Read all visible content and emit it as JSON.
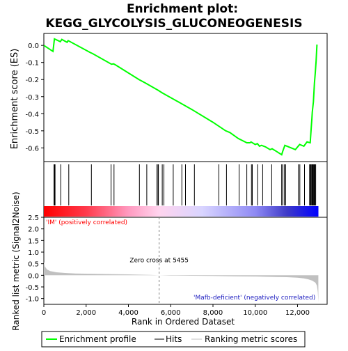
{
  "chart_data": {
    "type": "line",
    "title_line1": "Enrichment plot:",
    "title_line2": "KEGG_GLYCOLYSIS_GLUCONEOGENESIS",
    "es_panel": {
      "ylabel": "Enrichment score (ES)",
      "ylim": [
        -0.68,
        0.07
      ],
      "yticks": [
        0.0,
        -0.1,
        -0.2,
        -0.3,
        -0.4,
        -0.5,
        -0.6
      ],
      "ytick_labels": [
        "0.0",
        "-0.1",
        "-0.2",
        "-0.3",
        "-0.4",
        "-0.5",
        "-0.6"
      ],
      "curve_color": "#00ff00",
      "curve": [
        [
          0,
          0.0
        ],
        [
          430,
          -0.035
        ],
        [
          500,
          0.038
        ],
        [
          780,
          0.022
        ],
        [
          850,
          0.035
        ],
        [
          1100,
          0.018
        ],
        [
          1150,
          0.028
        ],
        [
          2200,
          -0.042
        ],
        [
          2300,
          -0.048
        ],
        [
          3200,
          -0.11
        ],
        [
          3300,
          -0.108
        ],
        [
          3400,
          -0.115
        ],
        [
          4500,
          -0.2
        ],
        [
          4800,
          -0.22
        ],
        [
          5400,
          -0.262
        ],
        [
          5600,
          -0.278
        ],
        [
          6500,
          -0.34
        ],
        [
          7000,
          -0.375
        ],
        [
          8000,
          -0.45
        ],
        [
          8600,
          -0.5
        ],
        [
          8800,
          -0.51
        ],
        [
          9200,
          -0.545
        ],
        [
          9600,
          -0.57
        ],
        [
          9750,
          -0.57
        ],
        [
          9800,
          -0.565
        ],
        [
          10000,
          -0.58
        ],
        [
          10100,
          -0.575
        ],
        [
          10200,
          -0.59
        ],
        [
          10300,
          -0.585
        ],
        [
          10500,
          -0.595
        ],
        [
          10700,
          -0.61
        ],
        [
          10800,
          -0.605
        ],
        [
          11000,
          -0.62
        ],
        [
          11250,
          -0.64
        ],
        [
          11300,
          -0.62
        ],
        [
          11400,
          -0.585
        ],
        [
          11500,
          -0.59
        ],
        [
          11900,
          -0.61
        ],
        [
          12100,
          -0.58
        ],
        [
          12300,
          -0.59
        ],
        [
          12450,
          -0.565
        ],
        [
          12600,
          -0.57
        ],
        [
          12650,
          -0.48
        ],
        [
          12680,
          -0.43
        ],
        [
          12700,
          -0.39
        ],
        [
          12750,
          -0.33
        ],
        [
          12800,
          -0.22
        ],
        [
          12840,
          -0.16
        ],
        [
          12880,
          -0.09
        ],
        [
          12920,
          0.005
        ]
      ]
    },
    "hits_panel": {
      "hit_positions": [
        480,
        510,
        530,
        800,
        1180,
        2250,
        3180,
        3320,
        4520,
        4870,
        5350,
        5400,
        5420,
        5600,
        5680,
        6120,
        6530,
        6700,
        7120,
        8280,
        8640,
        9240,
        9600,
        9820,
        9860,
        10110,
        10350,
        10780,
        11250,
        11310,
        11380,
        11440,
        12040,
        12110,
        12330,
        12570,
        12610,
        12640,
        12680,
        12700,
        12730,
        12760,
        12790,
        12820,
        12860
      ]
    },
    "ranking_panel": {
      "ylabel": "Ranked list metric (Signal2Noise)",
      "ylim": [
        -1.25,
        2.5
      ],
      "yticks": [
        2.5,
        2.0,
        1.5,
        1.0,
        0.5,
        0.0,
        -0.5,
        -1.0
      ],
      "ytick_labels": [
        "2.5",
        "2.0",
        "1.5",
        "1.0",
        "0.5",
        "0.0",
        "-0.5",
        "-1.0"
      ],
      "fill_color": "#c0c0c0",
      "metric": [
        [
          0,
          0.58
        ],
        [
          50,
          0.38
        ],
        [
          150,
          0.25
        ],
        [
          300,
          0.18
        ],
        [
          600,
          0.13
        ],
        [
          1000,
          0.1
        ],
        [
          1500,
          0.08
        ],
        [
          2000,
          0.07
        ],
        [
          3000,
          0.055
        ],
        [
          4000,
          0.04
        ],
        [
          5000,
          0.02
        ],
        [
          5455,
          0.0
        ],
        [
          6000,
          -0.01
        ],
        [
          7000,
          -0.02
        ],
        [
          8000,
          -0.03
        ],
        [
          9000,
          -0.04
        ],
        [
          10000,
          -0.05
        ],
        [
          11000,
          -0.07
        ],
        [
          11500,
          -0.08
        ],
        [
          12000,
          -0.1
        ],
        [
          12300,
          -0.13
        ],
        [
          12500,
          -0.17
        ],
        [
          12700,
          -0.23
        ],
        [
          12850,
          -0.32
        ],
        [
          12920,
          -0.45
        ],
        [
          12960,
          -0.7
        ],
        [
          12985,
          -1.15
        ]
      ],
      "label_pos": "'IM' (positively correlated)",
      "label_neg": "'Mafb-deficient' (negatively correlated)",
      "zero_cross_label": "Zero cross at 5455",
      "zero_cross": 5455
    },
    "xaxis": {
      "xlabel": "Rank in Ordered Dataset",
      "xlim": [
        0,
        13400
      ],
      "xticks": [
        0,
        2000,
        4000,
        6000,
        8000,
        10000,
        12000
      ],
      "xtick_labels": [
        "0",
        "2,000",
        "4,000",
        "6,000",
        "8,000",
        "10,000",
        "12,000"
      ],
      "total": 12990
    },
    "gradient_stops": [
      {
        "pos": 0,
        "color": "#ff0000"
      },
      {
        "pos": 2000,
        "color": "#ff3a4c"
      },
      {
        "pos": 4000,
        "color": "#ff9ac0"
      },
      {
        "pos": 5455,
        "color": "#ffd4ee"
      },
      {
        "pos": 7500,
        "color": "#d8d4ff"
      },
      {
        "pos": 10000,
        "color": "#8f8af4"
      },
      {
        "pos": 11500,
        "color": "#3e3ac8"
      },
      {
        "pos": 12990,
        "color": "#0000ff"
      }
    ],
    "legend": {
      "items": [
        {
          "label": "Enrichment profile",
          "color": "#00ff00"
        },
        {
          "label": "Hits",
          "color": "#000000"
        },
        {
          "label": "Ranking metric scores",
          "color": "#c0c0c0"
        }
      ],
      "placement": "bottom"
    }
  }
}
